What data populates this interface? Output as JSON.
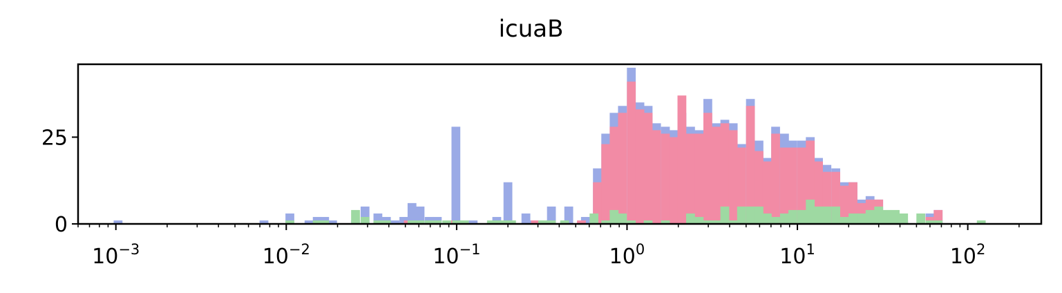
{
  "chart_data": {
    "type": "bar",
    "title": "icuaB",
    "xlabel": "",
    "ylabel": "",
    "x_scale": "log",
    "x_range": [
      0.0006,
      270
    ],
    "y_range": [
      0,
      46
    ],
    "grid": false,
    "legend": "none",
    "bar_style": "stacked histogram, log-spaced bins",
    "x_ticks": [
      {
        "value": 0.001,
        "base": "10",
        "exp": "−3"
      },
      {
        "value": 0.01,
        "base": "10",
        "exp": "−2"
      },
      {
        "value": 0.1,
        "base": "10",
        "exp": "−1"
      },
      {
        "value": 1,
        "base": "10",
        "exp": "0"
      },
      {
        "value": 10,
        "base": "10",
        "exp": "1"
      },
      {
        "value": 100,
        "base": "10",
        "exp": "2"
      }
    ],
    "y_ticks": [
      0,
      25
    ],
    "series": [
      {
        "color": "#9aaae6",
        "values": [
          [
            0.00103,
            1
          ],
          [
            0.0074,
            1
          ],
          [
            0.0105,
            3
          ],
          [
            0.0136,
            1
          ],
          [
            0.0152,
            2
          ],
          [
            0.0168,
            2
          ],
          [
            0.0187,
            1
          ],
          [
            0.0255,
            1
          ],
          [
            0.029,
            5
          ],
          [
            0.0345,
            3
          ],
          [
            0.0387,
            2
          ],
          [
            0.0435,
            1
          ],
          [
            0.049,
            2
          ],
          [
            0.0547,
            6
          ],
          [
            0.061,
            5
          ],
          [
            0.069,
            2
          ],
          [
            0.077,
            2
          ],
          [
            0.099,
            28
          ],
          [
            0.125,
            1
          ],
          [
            0.172,
            2
          ],
          [
            0.2,
            12
          ],
          [
            0.255,
            3
          ],
          [
            0.285,
            1
          ],
          [
            0.32,
            1
          ],
          [
            0.36,
            5
          ],
          [
            0.455,
            5
          ],
          [
            0.57,
            2
          ],
          [
            0.64,
            1
          ],
          [
            0.67,
            16
          ],
          [
            0.75,
            26
          ],
          [
            0.84,
            32
          ],
          [
            0.94,
            34
          ],
          [
            1.06,
            45
          ],
          [
            1.19,
            35
          ],
          [
            1.33,
            34
          ],
          [
            1.49,
            29
          ],
          [
            1.68,
            28
          ],
          [
            1.88,
            27
          ],
          [
            2.1,
            32
          ],
          [
            2.36,
            28
          ],
          [
            2.65,
            27
          ],
          [
            2.98,
            36
          ],
          [
            3.34,
            29
          ],
          [
            3.75,
            30
          ],
          [
            4.2,
            29
          ],
          [
            4.7,
            23
          ],
          [
            5.3,
            36
          ],
          [
            5.95,
            24
          ],
          [
            6.65,
            19
          ],
          [
            7.45,
            28
          ],
          [
            8.4,
            26
          ],
          [
            9.4,
            24
          ],
          [
            10.6,
            24
          ],
          [
            11.9,
            25
          ],
          [
            13.3,
            19
          ],
          [
            14.9,
            17
          ],
          [
            16.8,
            16
          ],
          [
            18.9,
            12
          ],
          [
            21.2,
            12
          ],
          [
            23.8,
            7
          ],
          [
            26.7,
            8
          ],
          [
            30,
            7
          ],
          [
            33.5,
            1
          ],
          [
            37.5,
            1
          ],
          [
            42,
            1
          ],
          [
            60,
            3
          ],
          [
            67,
            4
          ]
        ]
      },
      {
        "color": "#f28ba5",
        "values": [
          [
            0.052,
            1
          ],
          [
            0.09,
            1
          ],
          [
            0.1,
            1
          ],
          [
            0.2,
            1
          ],
          [
            0.29,
            1
          ],
          [
            0.54,
            1
          ],
          [
            0.67,
            12
          ],
          [
            0.75,
            23
          ],
          [
            0.84,
            28
          ],
          [
            0.94,
            32
          ],
          [
            1.06,
            41
          ],
          [
            1.19,
            33
          ],
          [
            1.33,
            32
          ],
          [
            1.49,
            27
          ],
          [
            1.68,
            26
          ],
          [
            1.88,
            25
          ],
          [
            2.1,
            37
          ],
          [
            2.36,
            26
          ],
          [
            2.65,
            26
          ],
          [
            2.98,
            32
          ],
          [
            3.34,
            28
          ],
          [
            3.75,
            29
          ],
          [
            4.2,
            27
          ],
          [
            4.7,
            22
          ],
          [
            5.3,
            34
          ],
          [
            5.95,
            21
          ],
          [
            6.65,
            18
          ],
          [
            7.45,
            26
          ],
          [
            8.4,
            22
          ],
          [
            9.4,
            22
          ],
          [
            10.6,
            22
          ],
          [
            11.9,
            24
          ],
          [
            13.3,
            18
          ],
          [
            14.9,
            15
          ],
          [
            16.8,
            15
          ],
          [
            18.9,
            11
          ],
          [
            21.2,
            12
          ],
          [
            23.8,
            6
          ],
          [
            26.7,
            7
          ],
          [
            30,
            7
          ],
          [
            33.5,
            1
          ],
          [
            37.5,
            1
          ],
          [
            42,
            1
          ],
          [
            60,
            2
          ],
          [
            67,
            4
          ]
        ]
      },
      {
        "color": "#9ed9a2",
        "values": [
          [
            0.0105,
            1
          ],
          [
            0.0152,
            1
          ],
          [
            0.0168,
            1
          ],
          [
            0.0255,
            4
          ],
          [
            0.029,
            2
          ],
          [
            0.0345,
            1
          ],
          [
            0.0387,
            1
          ],
          [
            0.0547,
            1
          ],
          [
            0.061,
            1
          ],
          [
            0.069,
            1
          ],
          [
            0.077,
            1
          ],
          [
            0.0875,
            1
          ],
          [
            0.111,
            1
          ],
          [
            0.1,
            1
          ],
          [
            0.16,
            1
          ],
          [
            0.18,
            1
          ],
          [
            0.2,
            1
          ],
          [
            0.21,
            1
          ],
          [
            0.32,
            1
          ],
          [
            0.36,
            1
          ],
          [
            0.43,
            1
          ],
          [
            0.64,
            3
          ],
          [
            0.75,
            1
          ],
          [
            0.84,
            4
          ],
          [
            0.94,
            3
          ],
          [
            1.06,
            1
          ],
          [
            1.33,
            1
          ],
          [
            1.68,
            1
          ],
          [
            2.36,
            3
          ],
          [
            2.65,
            2
          ],
          [
            2.98,
            1
          ],
          [
            3.34,
            1
          ],
          [
            3.75,
            5
          ],
          [
            4.2,
            1
          ],
          [
            4.7,
            5
          ],
          [
            5.3,
            5
          ],
          [
            5.95,
            5
          ],
          [
            6.65,
            3
          ],
          [
            7.45,
            2
          ],
          [
            8.4,
            3
          ],
          [
            9.4,
            4
          ],
          [
            10.6,
            4
          ],
          [
            11.9,
            7
          ],
          [
            13.3,
            5
          ],
          [
            14.9,
            5
          ],
          [
            16.8,
            5
          ],
          [
            18.9,
            2
          ],
          [
            21.2,
            3
          ],
          [
            23.8,
            3
          ],
          [
            26.7,
            4
          ],
          [
            30,
            5
          ],
          [
            33.5,
            4
          ],
          [
            37.5,
            4
          ],
          [
            42,
            3
          ],
          [
            53,
            3
          ],
          [
            60,
            1
          ],
          [
            67,
            1
          ],
          [
            120,
            1
          ]
        ]
      }
    ]
  }
}
